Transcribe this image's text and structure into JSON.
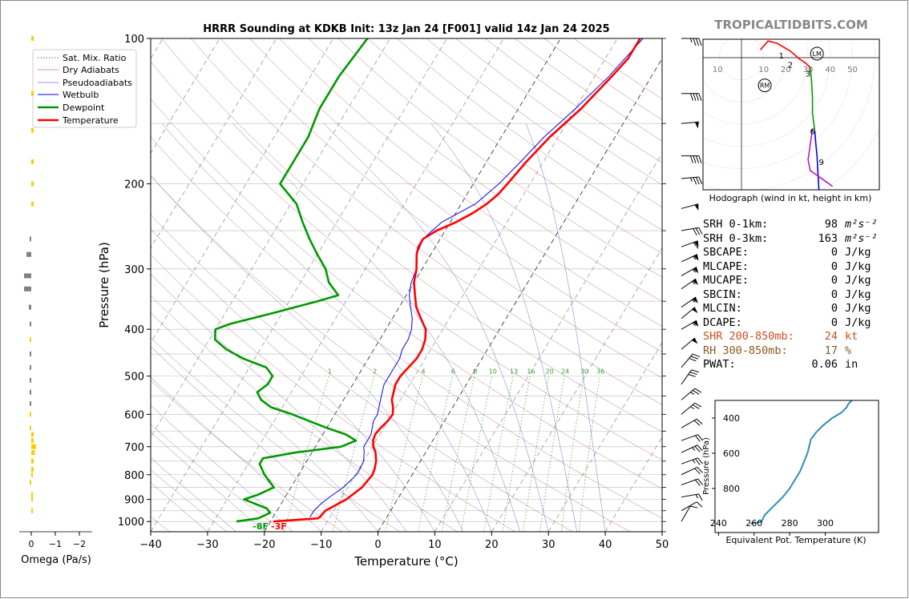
{
  "watermark": "TROPICALTIDBITS.COM",
  "chart_data": [
    {
      "type": "line",
      "name": "skew-t",
      "title": "HRRR Sounding at KDKB Init: 13z Jan 24 [F001] valid 14z Jan 24 2025",
      "xlabel": "Temperature (°C)",
      "ylabel": "Pressure (hPa)",
      "xlim": [
        -40,
        50
      ],
      "ylim": [
        1050,
        100
      ],
      "y_scale": "log",
      "x_ticks": [
        -40,
        -30,
        -20,
        -10,
        0,
        10,
        20,
        30,
        40,
        50
      ],
      "y_ticks": [
        100,
        200,
        300,
        400,
        500,
        600,
        700,
        800,
        900,
        1000
      ],
      "x_tick_labels": [
        "−40",
        "−30",
        "−20",
        "−10",
        "0",
        "10",
        "20",
        "30",
        "40",
        "50"
      ],
      "y_tick_labels": [
        "100",
        "200",
        "300",
        "400",
        "500",
        "600",
        "700",
        "800",
        "900",
        "1000"
      ],
      "legend_position": "top-left",
      "legend": [
        "Sat. Mix. Ratio",
        "Dry Adiabats",
        "Pseudoadiabats",
        "Wetbulb",
        "Dewpoint",
        "Temperature"
      ],
      "mixing_ratio_labels": [
        "1",
        "2",
        "4",
        "6",
        "8",
        "10",
        "13",
        "16",
        "20",
        "24",
        "30",
        "36"
      ],
      "surface_labels": {
        "dewpoint": "-8F",
        "temperature": "-3F"
      },
      "colors": {
        "temperature": "#ff0000",
        "dewpoint": "#009900",
        "wetbulb": "#0000ff",
        "dry_adiabat": "#d07070",
        "pseudoadiabat": "#7070d0",
        "mixing_ratio": "#3a9a3a",
        "isotherm_dashed": "#999999"
      },
      "series": [
        {
          "name": "Temperature",
          "p": [
            1000,
            985,
            980,
            950,
            920,
            900,
            850,
            800,
            780,
            750,
            720,
            700,
            680,
            660,
            640,
            620,
            600,
            580,
            560,
            540,
            520,
            500,
            480,
            460,
            440,
            420,
            400,
            380,
            360,
            340,
            320,
            300,
            280,
            270,
            260,
            250,
            240,
            230,
            220,
            210,
            200,
            180,
            160,
            140,
            120,
            110,
            100
          ],
          "t": [
            -19.5,
            -12,
            -11.8,
            -11.5,
            -10,
            -9,
            -7.5,
            -7,
            -7.2,
            -7.8,
            -8.8,
            -9.8,
            -10.5,
            -10.8,
            -10.5,
            -10,
            -9.8,
            -10.5,
            -11.5,
            -12,
            -12.5,
            -12.5,
            -12,
            -11.5,
            -11.5,
            -12,
            -13,
            -15,
            -17,
            -18.5,
            -20,
            -21,
            -22.5,
            -23,
            -23,
            -21.5,
            -19,
            -17,
            -15.5,
            -14.5,
            -14,
            -13,
            -11.5,
            -9,
            -7,
            -6,
            -6
          ]
        },
        {
          "name": "Dewpoint",
          "p": [
            1000,
            985,
            960,
            940,
            900,
            880,
            850,
            800,
            760,
            740,
            720,
            700,
            680,
            660,
            640,
            600,
            580,
            560,
            540,
            520,
            500,
            480,
            460,
            440,
            420,
            400,
            390,
            370,
            350,
            340,
            320,
            300,
            280,
            260,
            240,
            220,
            200,
            180,
            160,
            140,
            120,
            100
          ],
          "t": [
            -26,
            -22.5,
            -21,
            -22,
            -27,
            -25,
            -23,
            -26,
            -28,
            -28,
            -23,
            -15.5,
            -13.5,
            -16,
            -20,
            -27.5,
            -32,
            -34.5,
            -36,
            -35,
            -35,
            -37,
            -42,
            -46,
            -49,
            -50,
            -48,
            -41.5,
            -35,
            -32,
            -35,
            -37,
            -40,
            -43,
            -46,
            -49,
            -54,
            -54,
            -54,
            -55,
            -55,
            -54
          ]
        },
        {
          "name": "Wetbulb",
          "p": [
            980,
            950,
            920,
            900,
            850,
            800,
            780,
            750,
            720,
            700,
            680,
            660,
            640,
            620,
            600,
            580,
            560,
            540,
            520,
            500,
            480,
            460,
            440,
            420,
            400,
            380,
            360,
            340,
            320,
            300,
            280,
            260,
            240,
            220,
            200,
            180,
            160,
            140,
            120,
            100
          ],
          "t": [
            -13.5,
            -13.5,
            -13,
            -12.5,
            -10.8,
            -9.8,
            -9.8,
            -10,
            -10.8,
            -11.5,
            -11.5,
            -11.5,
            -12,
            -12.5,
            -12.5,
            -13,
            -13.5,
            -14,
            -14.5,
            -14.5,
            -14.5,
            -14.5,
            -15,
            -15,
            -15.5,
            -16.5,
            -18,
            -19.5,
            -20.5,
            -21,
            -22.5,
            -23,
            -21.5,
            -17.5,
            -15.5,
            -14,
            -12.5,
            -10,
            -7.5,
            -5.5
          ]
        }
      ]
    },
    {
      "type": "line",
      "name": "hodograph",
      "caption": "Hodograph (wind in kt, height in km)",
      "ring_labels": [
        "10",
        "10",
        "20",
        "30",
        "40",
        "50"
      ],
      "height_labels": [
        "1",
        "2",
        "3",
        "6",
        "9"
      ],
      "markers": [
        "RM",
        "LM"
      ],
      "series": [
        {
          "name": "0-3 km",
          "color": "#ff0000",
          "u": [
            8.5,
            12,
            16,
            22,
            26,
            29,
            31
          ],
          "v": [
            3.5,
            7.5,
            6.5,
            3,
            -0.5,
            -2.5,
            -4.5
          ]
        },
        {
          "name": "3-6 km",
          "color": "#009900",
          "u": [
            31,
            31.5,
            32,
            32,
            33
          ],
          "v": [
            -4.5,
            -10,
            -18,
            -25,
            -33
          ]
        },
        {
          "name": "6-9 km",
          "color": "#0000ff",
          "u": [
            33,
            33.5,
            34,
            35,
            48,
            40
          ],
          "v": [
            -33,
            -39,
            -44,
            -62,
            -63,
            -67
          ]
        },
        {
          "name": "9-12 km",
          "color": "#b020c0",
          "u": [
            32,
            31,
            30,
            31,
            34,
            41
          ],
          "v": [
            -32,
            -39,
            -46,
            -51,
            -53,
            -58
          ]
        }
      ]
    },
    {
      "type": "line",
      "name": "theta-e",
      "xlabel": "Equivalent Pot. Temperature (K)",
      "ylabel": "Pressure (hPa)",
      "xlim": [
        238,
        330
      ],
      "ylim": [
        1050,
        300
      ],
      "x_ticks": [
        240,
        260,
        280,
        300
      ],
      "y_ticks": [
        400,
        600,
        800
      ],
      "series": [
        {
          "name": "Theta-E",
          "color": "#2e8fb0",
          "p": [
            1000,
            995,
            990,
            970,
            950,
            920,
            880,
            850,
            800,
            750,
            700,
            650,
            600,
            560,
            520,
            480,
            440,
            400,
            370,
            340,
            320,
            310,
            300
          ],
          "theta_e": [
            258,
            260,
            264,
            265,
            266,
            269,
            273,
            276,
            280,
            283,
            286,
            288,
            290,
            291,
            292,
            295,
            299,
            304,
            309,
            312,
            313,
            314,
            315
          ]
        }
      ]
    },
    {
      "type": "bar",
      "name": "omega",
      "xlabel": "Omega (Pa/s)",
      "x_ticks": [
        "0",
        "−1",
        "−2"
      ],
      "series": [
        {
          "name": "Omega",
          "p": [
            100,
            130,
            155,
            180,
            200,
            220,
            260,
            280,
            310,
            330,
            360,
            390,
            420,
            450,
            480,
            510,
            540,
            570,
            600,
            640,
            660,
            680,
            700,
            720,
            750,
            780,
            800,
            830,
            880,
            900,
            950
          ],
          "omega": [
            -0.1,
            -0.1,
            -0.1,
            -0.1,
            -0.1,
            -0.1,
            0.05,
            0.2,
            0.3,
            0.3,
            0.1,
            0.04,
            0.04,
            0.04,
            0.04,
            0.04,
            0.04,
            0.04,
            0.04,
            0.04,
            -0.1,
            -0.1,
            -0.2,
            -0.15,
            -0.1,
            -0.1,
            -0.05,
            0.05,
            -0.05,
            -0.05,
            -0.05
          ],
          "colors": [
            "#f5d000",
            "#f5d000",
            "#f5d000",
            "#f5d000",
            "#f5d000",
            "#f5d000",
            "#808080",
            "#808080",
            "#808080",
            "#808080",
            "#808080",
            "#808080",
            "#f5d000",
            "#808080",
            "#808080",
            "#808080",
            "#808080",
            "#808080",
            "#f5d000",
            "#f5d000",
            "#f5d000",
            "#f5d000",
            "#f5d000",
            "#f5d000",
            "#f5d000",
            "#f5d000",
            "#f5d000",
            "#f5d000",
            "#f5d000",
            "#f5d000",
            "#f5d000"
          ]
        }
      ]
    }
  ],
  "indices": [
    {
      "label": "SRH 0-1km:",
      "value": "98",
      "unit_html": "m²s⁻²",
      "color": "#000000"
    },
    {
      "label": "SRH 0-3km:",
      "value": "163",
      "unit_html": "m²s⁻²",
      "color": "#000000"
    },
    {
      "label": "SBCAPE:",
      "value": "0",
      "unit_html": "J/kg",
      "color": "#000000"
    },
    {
      "label": "MLCAPE:",
      "value": "0",
      "unit_html": "J/kg",
      "color": "#000000"
    },
    {
      "label": "MUCAPE:",
      "value": "0",
      "unit_html": "J/kg",
      "color": "#000000"
    },
    {
      "label": "SBCIN:",
      "value": "0",
      "unit_html": "J/kg",
      "color": "#000000"
    },
    {
      "label": "MLCIN:",
      "value": "0",
      "unit_html": "J/kg",
      "color": "#000000"
    },
    {
      "label": "DCAPE:",
      "value": "0",
      "unit_html": "J/kg",
      "color": "#000000"
    },
    {
      "label": "SHR 200-850mb:",
      "value": "24",
      "unit_html": "kt",
      "color": "#c8501e"
    },
    {
      "label": "RH 300-850mb:",
      "value": "17",
      "unit_html": "%",
      "color": "#8b5a1e"
    },
    {
      "label": "PWAT:",
      "value": "0.06",
      "unit_html": "in",
      "color": "#000000"
    }
  ],
  "wind_barbs": [
    {
      "p": 100,
      "dir": 270,
      "kt": 35
    },
    {
      "p": 130,
      "dir": 270,
      "kt": 40
    },
    {
      "p": 150,
      "dir": 265,
      "kt": 50
    },
    {
      "p": 175,
      "dir": 270,
      "kt": 40
    },
    {
      "p": 195,
      "dir": 265,
      "kt": 35
    },
    {
      "p": 225,
      "dir": 255,
      "kt": 50
    },
    {
      "p": 250,
      "dir": 260,
      "kt": 30
    },
    {
      "p": 270,
      "dir": 250,
      "kt": 60
    },
    {
      "p": 290,
      "dir": 245,
      "kt": 55
    },
    {
      "p": 310,
      "dir": 240,
      "kt": 55
    },
    {
      "p": 330,
      "dir": 235,
      "kt": 55
    },
    {
      "p": 360,
      "dir": 235,
      "kt": 55
    },
    {
      "p": 380,
      "dir": 230,
      "kt": 50
    },
    {
      "p": 400,
      "dir": 240,
      "kt": 55
    },
    {
      "p": 440,
      "dir": 230,
      "kt": 50
    },
    {
      "p": 480,
      "dir": 220,
      "kt": 30
    },
    {
      "p": 520,
      "dir": 215,
      "kt": 30
    },
    {
      "p": 560,
      "dir": 230,
      "kt": 25
    },
    {
      "p": 600,
      "dir": 230,
      "kt": 25
    },
    {
      "p": 640,
      "dir": 240,
      "kt": 20
    },
    {
      "p": 680,
      "dir": 250,
      "kt": 20
    },
    {
      "p": 720,
      "dir": 245,
      "kt": 25
    },
    {
      "p": 760,
      "dir": 250,
      "kt": 25
    },
    {
      "p": 800,
      "dir": 245,
      "kt": 20
    },
    {
      "p": 840,
      "dir": 250,
      "kt": 20
    },
    {
      "p": 890,
      "dir": 260,
      "kt": 15
    },
    {
      "p": 950,
      "dir": 240,
      "kt": 10
    },
    {
      "p": 1000,
      "dir": 210,
      "kt": 10
    }
  ]
}
